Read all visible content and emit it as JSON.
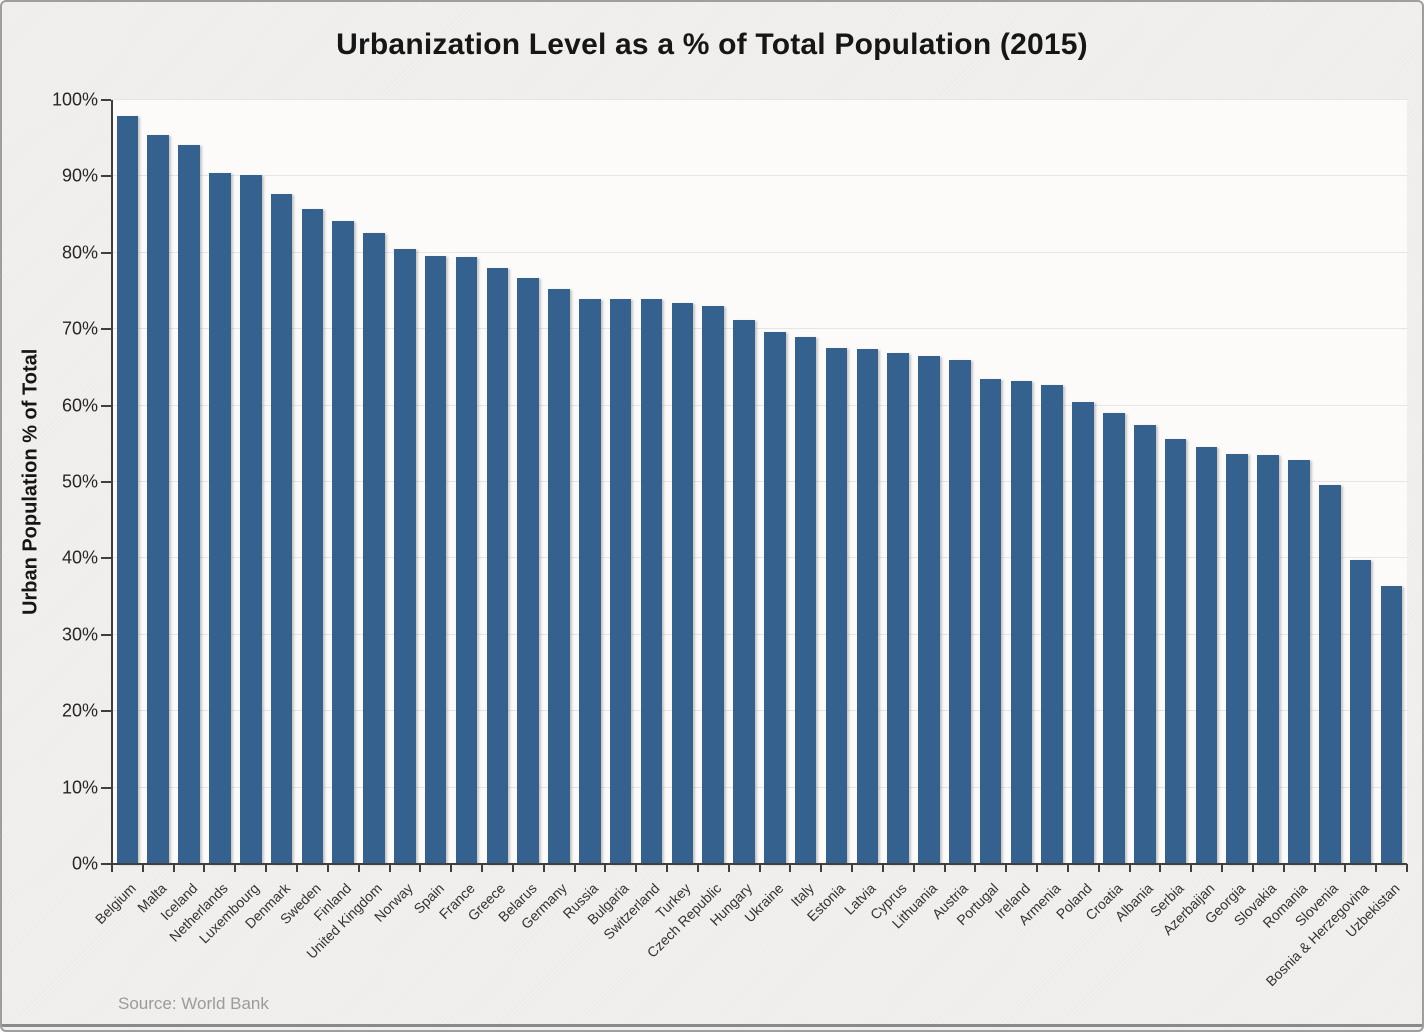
{
  "title": "Urbanization Level as a % of Total Population (2015)",
  "source_note": "Source: World Bank",
  "chart_data": {
    "type": "bar",
    "title": "Urbanization Level as a % of Total Population (2015)",
    "xlabel": "",
    "ylabel": "Urban Population % of Total",
    "ylim": [
      0,
      100
    ],
    "ytick_step": 10,
    "ytick_labels": [
      "0%",
      "10%",
      "20%",
      "30%",
      "40%",
      "50%",
      "60%",
      "70%",
      "80%",
      "90%",
      "100%"
    ],
    "grid": true,
    "legend": "none",
    "bar_color": "#35618e",
    "axis_color": "#3f3f3f",
    "grid_color": "#e7e5e2",
    "categories": [
      "Belgium",
      "Malta",
      "Iceland",
      "Netherlands",
      "Luxembourg",
      "Denmark",
      "Sweden",
      "Finland",
      "United Kingdom",
      "Norway",
      "Spain",
      "France",
      "Greece",
      "Belarus",
      "Germany",
      "Russia",
      "Bulgaria",
      "Switzerland",
      "Turkey",
      "Czech Republic",
      "Hungary",
      "Ukraine",
      "Italy",
      "Estonia",
      "Latvia",
      "Cyprus",
      "Lithuania",
      "Austria",
      "Portugal",
      "Ireland",
      "Armenia",
      "Poland",
      "Croatia",
      "Albania",
      "Serbia",
      "Azerbaijan",
      "Georgia",
      "Slovakia",
      "Romania",
      "Slovenia",
      "Bosnia & Herzegovina",
      "Uzbekistan"
    ],
    "values": [
      97.9,
      95.4,
      94.1,
      90.5,
      90.2,
      87.7,
      85.8,
      84.2,
      82.6,
      80.5,
      79.6,
      79.5,
      78.0,
      76.7,
      75.3,
      74.0,
      74.0,
      73.9,
      73.4,
      73.0,
      71.2,
      69.7,
      69.0,
      67.5,
      67.4,
      66.9,
      66.5,
      66.0,
      63.5,
      63.2,
      62.7,
      60.5,
      59.0,
      57.4,
      55.6,
      54.6,
      53.7,
      53.6,
      52.9,
      49.6,
      39.8,
      36.4
    ]
  }
}
